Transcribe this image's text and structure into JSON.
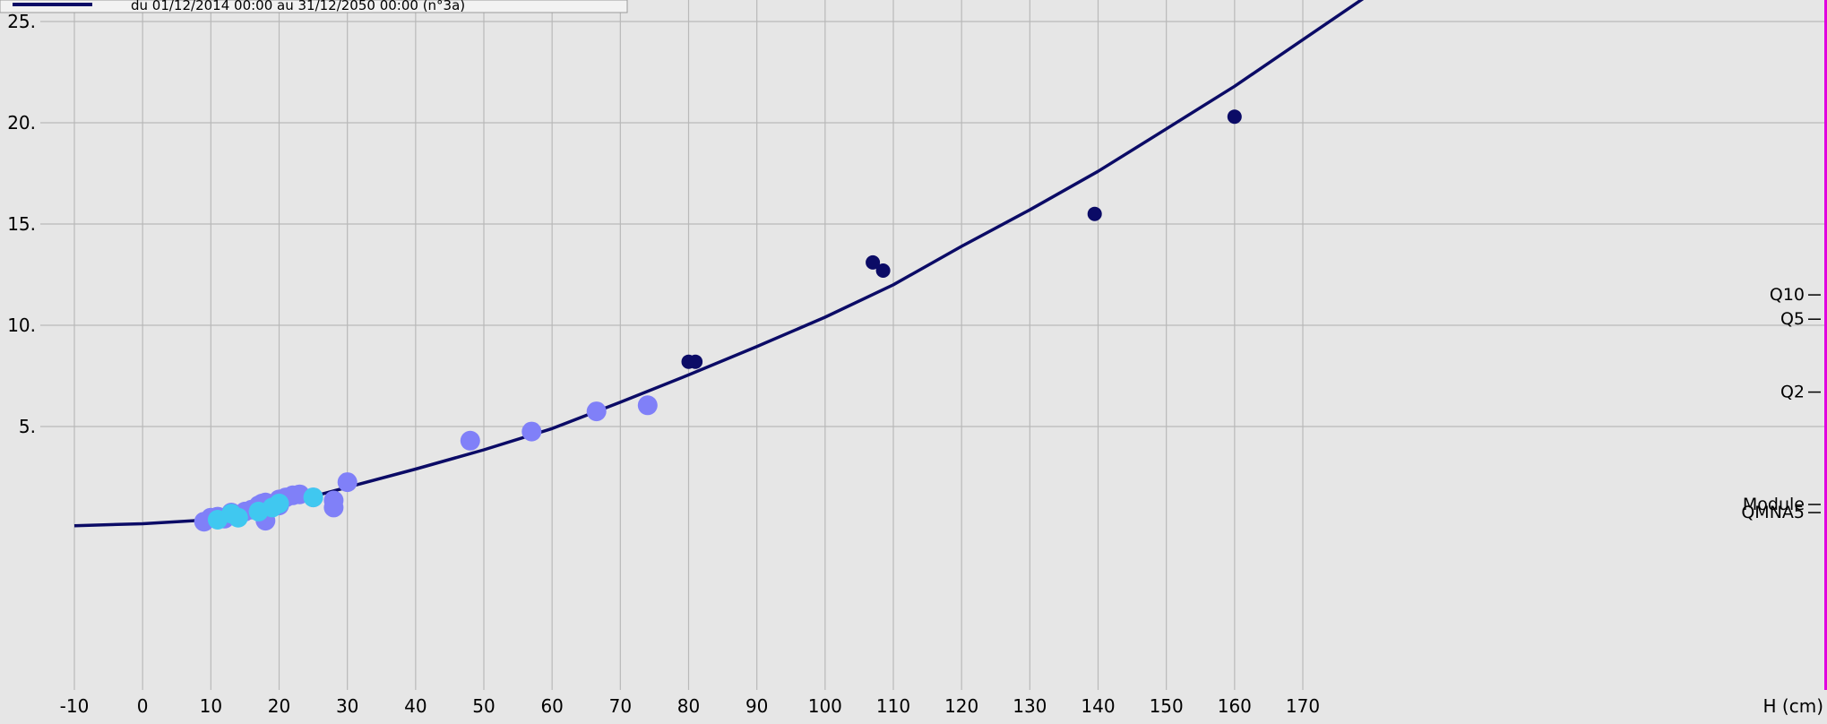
{
  "chart_data": {
    "type": "scatter",
    "title": "",
    "xlabel": "H (cm)",
    "ylabel": "",
    "xlim": [
      -12,
      185
    ],
    "ylim": [
      0,
      25.9
    ],
    "grid": true,
    "x_ticks": [
      -10,
      0,
      10,
      20,
      30,
      40,
      50,
      60,
      70,
      80,
      90,
      100,
      110,
      120,
      130,
      140,
      150,
      160,
      170
    ],
    "y_ticks": [
      5,
      10,
      15,
      20,
      25
    ],
    "y_tick_labels": [
      "5.",
      "10.",
      "15.",
      "20.",
      "25."
    ],
    "legend": {
      "placement": "top-left",
      "entry": "du 01/12/2014 00:00 au 31/12/2050 00:00 (n°3a)",
      "color": "#0b0b66"
    },
    "right_markers": [
      {
        "label": "Q10",
        "y": 11.5
      },
      {
        "label": "Q5",
        "y": 10.3
      },
      {
        "label": "Q2",
        "y": 6.7
      },
      {
        "label": "Module",
        "y": 1.15
      },
      {
        "label": "QMNA5",
        "y": 0.75
      }
    ],
    "series": [
      {
        "type": "line",
        "color": "#0b0b66",
        "x": [
          -10,
          0,
          10,
          20,
          30,
          40,
          50,
          60,
          70,
          80,
          90,
          100,
          110,
          120,
          130,
          140,
          150,
          160,
          170,
          180
        ],
        "values": [
          0.1,
          0.2,
          0.4,
          1.1,
          2.0,
          2.9,
          3.85,
          4.9,
          6.2,
          7.55,
          8.95,
          10.4,
          12.0,
          13.9,
          15.7,
          17.6,
          19.7,
          21.8,
          24.1,
          26.4
        ]
      },
      {
        "type": "scatter",
        "color": "#8080f8",
        "x": [
          9,
          10,
          11,
          12,
          13,
          13.5,
          15,
          16,
          17,
          17.5,
          18,
          18,
          20,
          20,
          21,
          22,
          23,
          25,
          28,
          28,
          30,
          48,
          57,
          66.5,
          74
        ],
        "values": [
          0.3,
          0.5,
          0.55,
          0.45,
          0.75,
          0.6,
          0.8,
          0.9,
          1.1,
          1.2,
          0.35,
          1.25,
          1.1,
          1.4,
          1.5,
          1.6,
          1.65,
          1.5,
          1.35,
          1.0,
          2.25,
          4.3,
          4.75,
          5.75,
          6.05
        ]
      },
      {
        "type": "scatter",
        "color": "#40c8f0",
        "x": [
          11,
          13,
          14,
          17,
          19,
          20,
          25
        ],
        "values": [
          0.4,
          0.7,
          0.5,
          0.8,
          1.0,
          1.2,
          1.5
        ]
      },
      {
        "type": "scatter",
        "color": "#0b0b66",
        "x": [
          80,
          81,
          107,
          108.5,
          139.5,
          160
        ],
        "values": [
          8.2,
          8.2,
          13.1,
          12.7,
          15.5,
          20.3
        ]
      }
    ]
  }
}
